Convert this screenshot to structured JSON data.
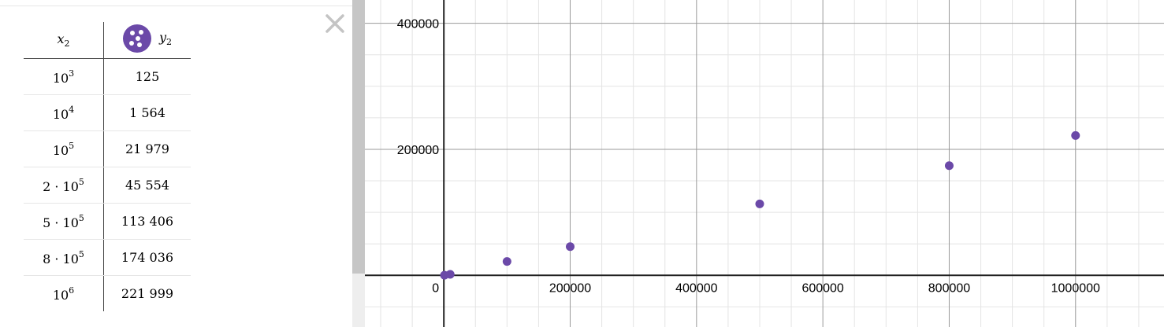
{
  "table": {
    "header_x": "x",
    "header_x_sub": "2",
    "header_y": "y",
    "header_y_sub": "2",
    "series_color": "#6b49a8",
    "rows": [
      {
        "x_display": "10",
        "x_exp": "3",
        "y": "125"
      },
      {
        "x_display": "10",
        "x_exp": "4",
        "y": "1 564"
      },
      {
        "x_display": "10",
        "x_exp": "5",
        "y": "21 979"
      },
      {
        "x_display": "2 · 10",
        "x_exp": "5",
        "y": "45 554"
      },
      {
        "x_display": "5 · 10",
        "x_exp": "5",
        "y": "113 406"
      },
      {
        "x_display": "8 · 10",
        "x_exp": "5",
        "y": "174 036"
      },
      {
        "x_display": "10",
        "x_exp": "6",
        "y": "221 999"
      }
    ]
  },
  "close_icon": "close-icon",
  "chart_data": {
    "type": "scatter",
    "x": [
      1000,
      10000,
      100000,
      200000,
      500000,
      800000,
      1000000
    ],
    "y": [
      125,
      1564,
      21979,
      45554,
      113406,
      174036,
      221999
    ],
    "xlim": [
      -125000,
      1140000
    ],
    "ylim": [
      -82000,
      437000
    ],
    "grid": true,
    "x_tick_labels": [
      "0",
      "200000",
      "400000",
      "600000",
      "800000",
      "1000000"
    ],
    "y_tick_labels": [
      "200000",
      "400000"
    ],
    "color": "#6b49a8"
  }
}
